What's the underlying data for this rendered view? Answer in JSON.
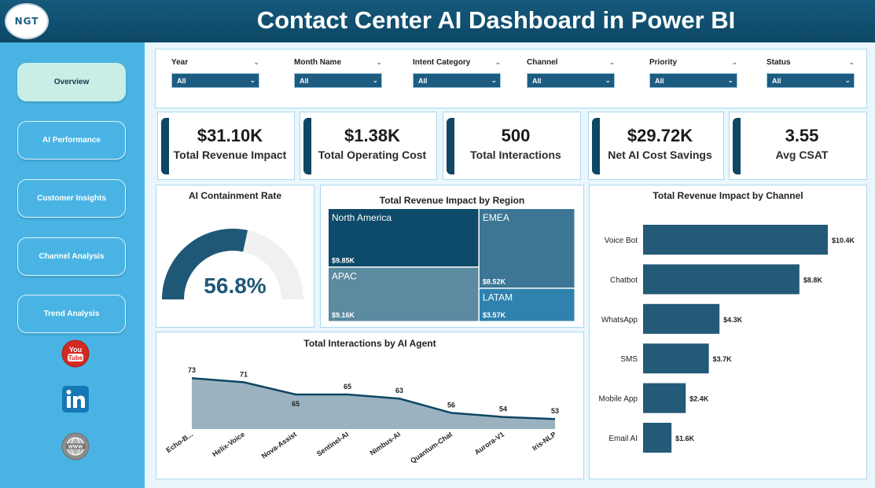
{
  "header": {
    "logo_text": "NGT",
    "title": "Contact Center AI Dashboard in Power BI"
  },
  "sidebar": {
    "items": [
      {
        "label": "Overview",
        "active": true
      },
      {
        "label": "AI Performance"
      },
      {
        "label": "Customer Insights"
      },
      {
        "label": "Channel Analysis"
      },
      {
        "label": "Trend Analysis"
      }
    ],
    "social": [
      {
        "icon": "youtube-icon",
        "label": "You Tube"
      },
      {
        "icon": "linkedin-icon",
        "label": "in"
      },
      {
        "icon": "web-icon",
        "label": "WWW"
      }
    ]
  },
  "filters": [
    {
      "label": "Year",
      "value": "All"
    },
    {
      "label": "Month Name",
      "value": "All"
    },
    {
      "label": "Intent Category",
      "value": "All"
    },
    {
      "label": "Channel",
      "value": "All"
    },
    {
      "label": "Priority",
      "value": "All"
    },
    {
      "label": "Status",
      "value": "All"
    }
  ],
  "kpis": [
    {
      "value": "$31.10K",
      "label": "Total Revenue Impact"
    },
    {
      "value": "$1.38K",
      "label": "Total Operating Cost"
    },
    {
      "value": "500",
      "label": "Total Interactions"
    },
    {
      "value": "$29.72K",
      "label": "Net AI Cost Savings"
    },
    {
      "value": "3.55",
      "label": "Avg CSAT"
    }
  ],
  "colors": {
    "header": "#0d4766",
    "sidebar": "#49b4e4",
    "accent": "#1e5b80",
    "bar": "#235a78",
    "gauge_track": "#f0f0f0",
    "area_fill": "#9bb3c1"
  },
  "chart_data": [
    {
      "type": "gauge",
      "title": "AI Containment Rate",
      "value": 56.8,
      "display": "56.8%",
      "max": 100
    },
    {
      "type": "treemap",
      "title": "Total Revenue Impact by Region",
      "categories": [
        "North America",
        "EMEA",
        "APAC",
        "LATAM"
      ],
      "values": [
        9.85,
        8.52,
        9.16,
        3.57
      ],
      "labels": [
        "$9.85K",
        "$8.52K",
        "$9.16K",
        "$3.57K"
      ],
      "colors": [
        "#0e4a69",
        "#3c7694",
        "#5b8aa1",
        "#2f82ad"
      ]
    },
    {
      "type": "bar",
      "orientation": "horizontal",
      "title": "Total Revenue Impact by Channel",
      "categories": [
        "Voice Bot",
        "Chatbot",
        "WhatsApp",
        "SMS",
        "Mobile App",
        "Email AI"
      ],
      "values": [
        10.4,
        8.8,
        4.3,
        3.7,
        2.4,
        1.6
      ],
      "labels": [
        "$10.4K",
        "$8.8K",
        "$4.3K",
        "$3.7K",
        "$2.4K",
        "$1.6K"
      ]
    },
    {
      "type": "area",
      "title": "Total Interactions by AI Agent",
      "categories": [
        "Echo-B...",
        "Helix-Voice",
        "Nova-Assist",
        "Sentinel-AI",
        "Nimbus-AI",
        "Quantum-Chat",
        "Aurora-V1",
        "Iris-NLP"
      ],
      "values": [
        73,
        71,
        65,
        65,
        63,
        56,
        54,
        53
      ]
    }
  ]
}
